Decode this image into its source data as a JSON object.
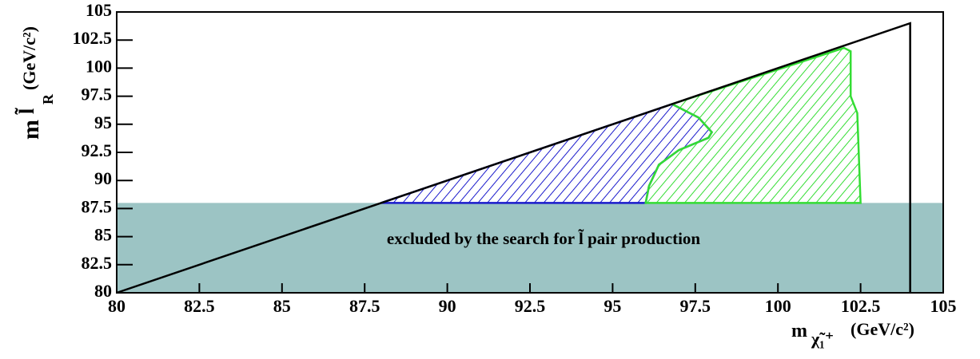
{
  "chart_data": {
    "type": "region",
    "xlim": [
      80,
      105
    ],
    "ylim": [
      80,
      105
    ],
    "xticks": [
      80,
      82.5,
      85,
      87.5,
      90,
      92.5,
      95,
      97.5,
      100,
      102.5,
      105
    ],
    "yticks": [
      80,
      82.5,
      85,
      87.5,
      90,
      92.5,
      95,
      97.5,
      100,
      102.5,
      105
    ],
    "x_label": {
      "main": "m",
      "sub": "χ̃₁⁺",
      "unit": "(GeV/c²)"
    },
    "y_label": {
      "main": "m",
      "sub": "l̃",
      "subsub": "R",
      "unit": "(GeV/c²)"
    },
    "annotation": "excluded by the search for  l̃ pair production",
    "regions": [
      {
        "color": "#9cc4c4",
        "hatch": false,
        "x": [
          80,
          105,
          105,
          80
        ],
        "y": [
          80,
          80,
          88,
          88
        ]
      },
      {
        "color": "#1a1acc",
        "hatch": true,
        "x": [
          88,
          96.8,
          97.6,
          98,
          97.9,
          97,
          96.4,
          96.1,
          96
        ],
        "y": [
          88,
          96.8,
          95.6,
          94.3,
          93.8,
          92.7,
          91.4,
          89.5,
          88
        ]
      },
      {
        "color": "#33dd33",
        "hatch": true,
        "x": [
          96.8,
          102,
          102.2,
          102.2,
          102.4,
          102.5,
          96,
          96.1,
          96.4,
          97,
          97.9,
          98,
          97.6
        ],
        "y": [
          96.8,
          101.8,
          101.5,
          97.5,
          96,
          88,
          88,
          89.5,
          91.4,
          92.7,
          93.8,
          94.3,
          95.6
        ]
      }
    ],
    "boundary": {
      "color": "#000000",
      "x": [
        80,
        104,
        104
      ],
      "y": [
        80,
        104,
        80
      ]
    }
  }
}
